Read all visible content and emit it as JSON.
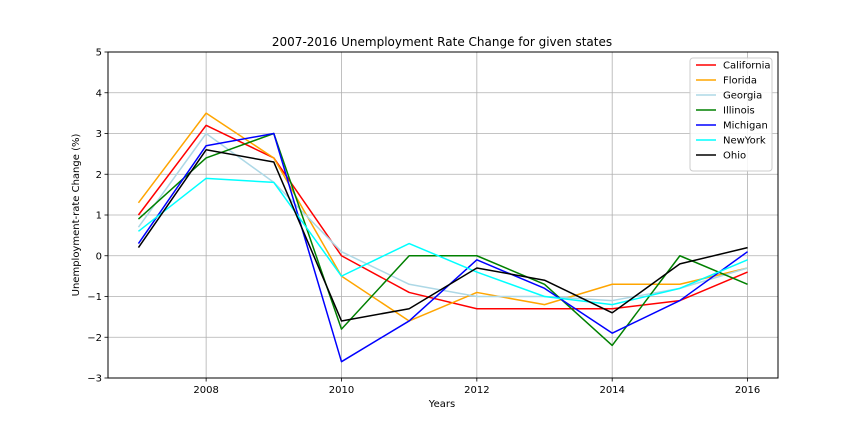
{
  "chart_data": {
    "type": "line",
    "title": "2007-2016 Unemployment Rate Change for given states",
    "xlabel": "Years",
    "ylabel": "Unemployment-rate Change (%)",
    "x": [
      2007,
      2008,
      2009,
      2010,
      2011,
      2012,
      2013,
      2014,
      2015,
      2016
    ],
    "xlim": [
      2006.55,
      2016.45
    ],
    "ylim": [
      -3,
      5
    ],
    "xticks": [
      2008,
      2010,
      2012,
      2014,
      2016
    ],
    "yticks": [
      -3,
      -2,
      -1,
      0,
      1,
      2,
      3,
      4,
      5
    ],
    "xtick_labels": [
      "2008",
      "2010",
      "2012",
      "2014",
      "2016"
    ],
    "ytick_labels": [
      "−3",
      "−2",
      "−1",
      "0",
      "1",
      "2",
      "3",
      "4",
      "5"
    ],
    "grid": true,
    "legend_position": "top-right",
    "series": [
      {
        "name": "California",
        "color": "#ff0000",
        "values": [
          1.0,
          3.2,
          2.4,
          0.0,
          -0.9,
          -1.3,
          -1.3,
          -1.3,
          -1.1,
          -0.4
        ]
      },
      {
        "name": "Florida",
        "color": "#ffa500",
        "values": [
          1.3,
          3.5,
          2.4,
          -0.5,
          -1.6,
          -0.9,
          -1.2,
          -0.7,
          -0.7,
          -0.3
        ]
      },
      {
        "name": "Georgia",
        "color": "#add8e6",
        "values": [
          0.7,
          3.0,
          1.8,
          0.1,
          -0.7,
          -1.0,
          -1.0,
          -1.1,
          -0.8,
          -0.3
        ]
      },
      {
        "name": "Illinois",
        "color": "#008000",
        "values": [
          0.9,
          2.4,
          3.0,
          -1.8,
          0.0,
          0.0,
          -0.7,
          -2.2,
          0.0,
          -0.7
        ]
      },
      {
        "name": "Michigan",
        "color": "#0000ff",
        "values": [
          0.3,
          2.7,
          3.0,
          -2.6,
          -1.6,
          -0.1,
          -0.8,
          -1.9,
          -1.1,
          0.1
        ]
      },
      {
        "name": "NewYork",
        "color": "#00ffff",
        "values": [
          0.6,
          1.9,
          1.8,
          -0.5,
          0.3,
          -0.4,
          -1.0,
          -1.2,
          -0.8,
          -0.1
        ]
      },
      {
        "name": "Ohio",
        "color": "#000000",
        "values": [
          0.2,
          2.6,
          2.3,
          -1.6,
          -1.3,
          -0.3,
          -0.6,
          -1.4,
          -0.2,
          0.2
        ]
      }
    ]
  }
}
